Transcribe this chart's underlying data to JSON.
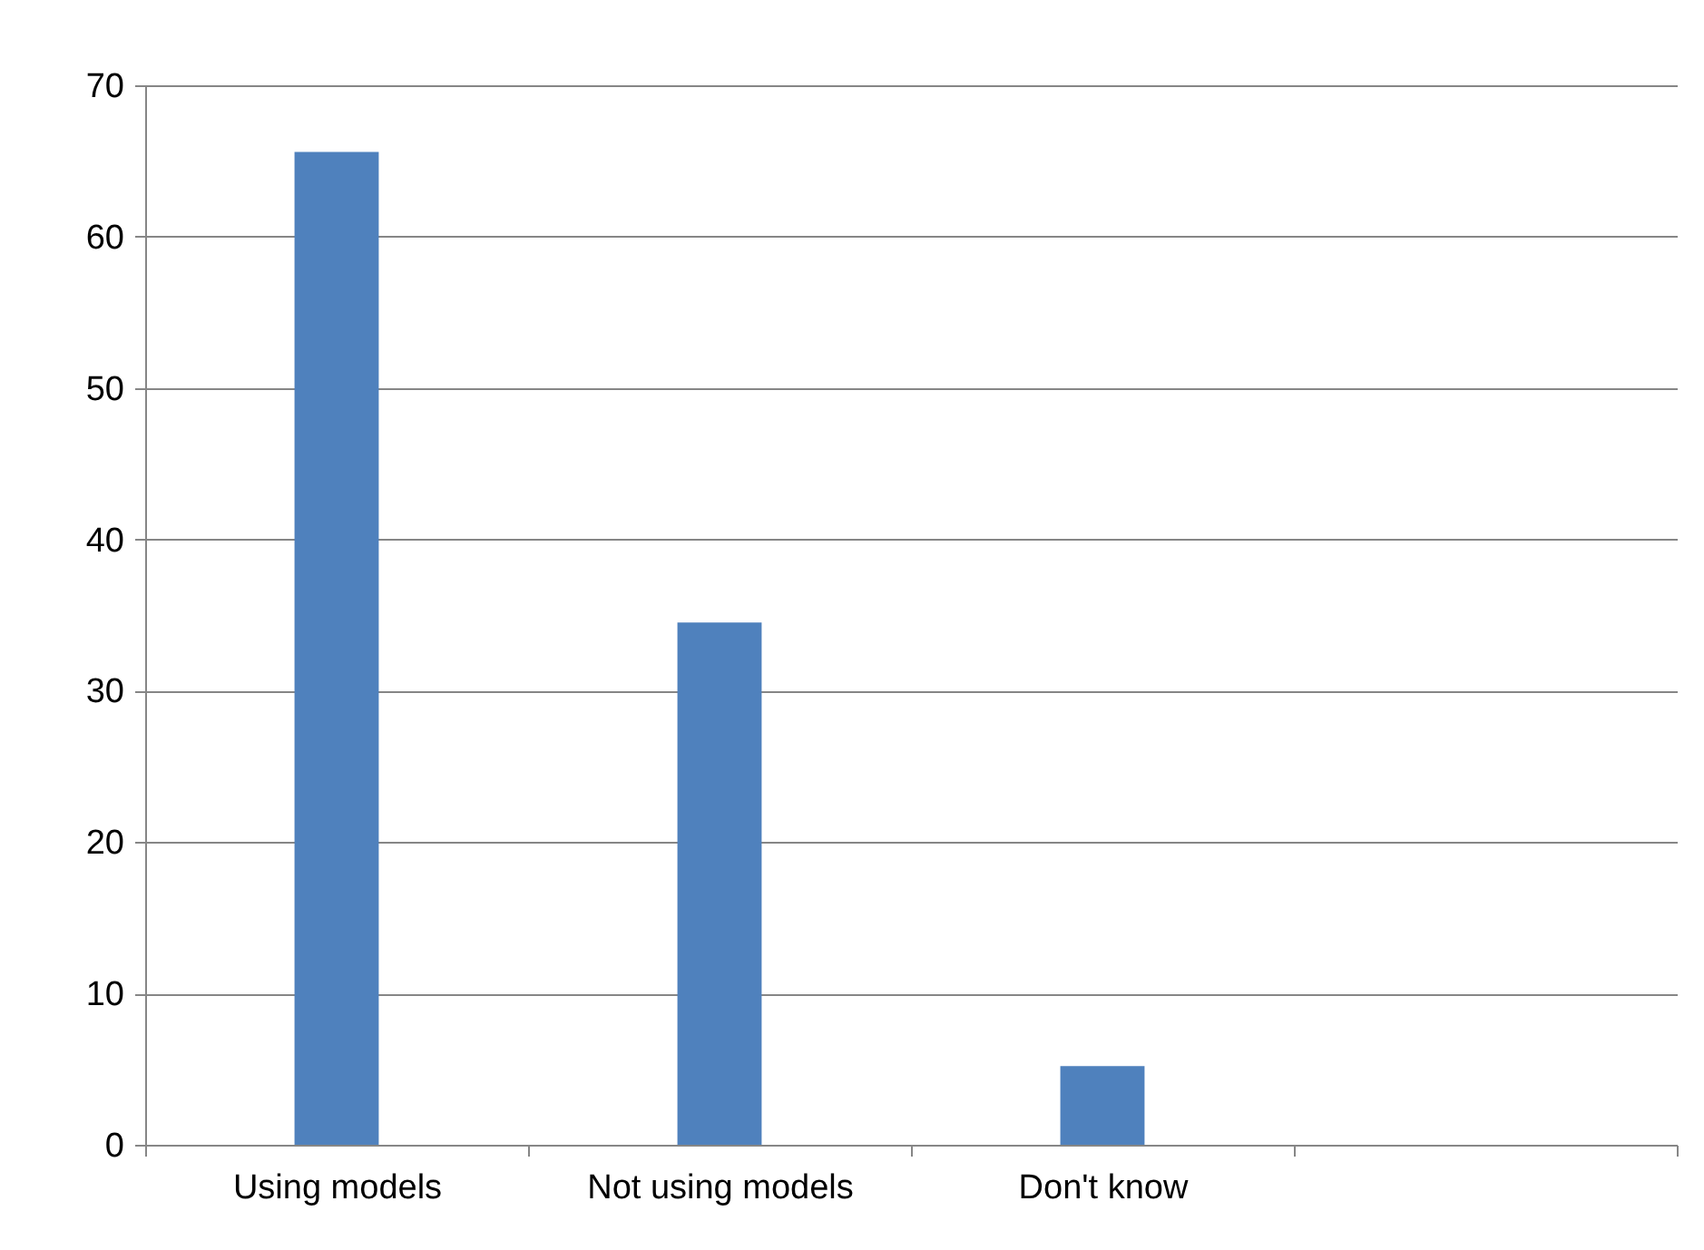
{
  "chart_data": {
    "type": "bar",
    "categories": [
      "Using models",
      "Not using models",
      "Don't know",
      null
    ],
    "values": [
      65.6,
      34.5,
      5.2,
      null
    ],
    "color": "#4f81bd",
    "ylim": [
      0,
      70
    ],
    "yticks": [
      0,
      10,
      20,
      30,
      40,
      50,
      60,
      70
    ],
    "grid": "y"
  }
}
